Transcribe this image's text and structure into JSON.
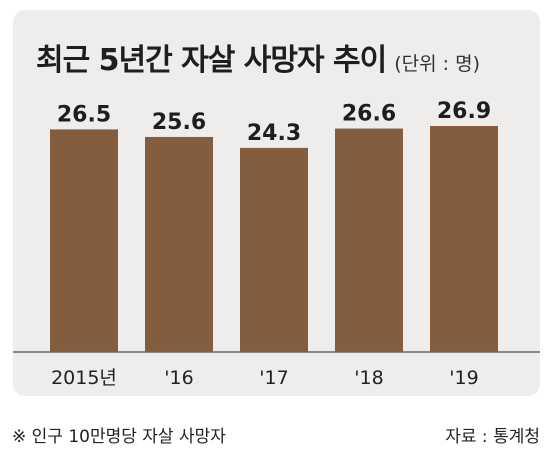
{
  "title": "최근 5년간 자살 사망자 추이",
  "unit_label": "(단위 : 명)",
  "footnote": "※ 인구 10만명당 자살 사망자",
  "source": "자료 : 통계청",
  "colors": {
    "bar": "#835d40",
    "panel": "#efedeb",
    "baseline": "#666666"
  },
  "chart_data": {
    "type": "bar",
    "categories": [
      "2015년",
      "'16",
      "'17",
      "'18",
      "'19"
    ],
    "values": [
      26.5,
      25.6,
      24.3,
      26.6,
      26.9
    ],
    "value_labels": [
      "26.5",
      "25.6",
      "24.3",
      "26.6",
      "26.9"
    ],
    "title": "최근 5년간 자살 사망자 추이",
    "xlabel": "",
    "ylabel": "",
    "ylim": [
      0,
      30
    ],
    "grid": false,
    "legend": "none"
  }
}
